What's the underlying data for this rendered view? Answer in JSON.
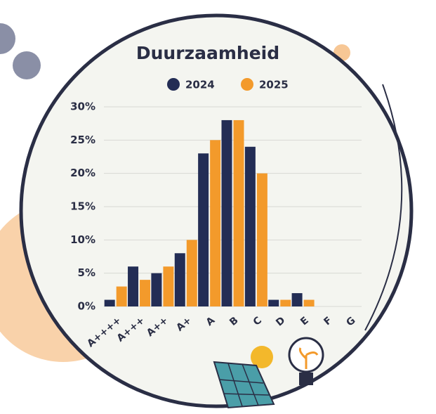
{
  "chart_data": {
    "type": "bar",
    "title": "Duurzaamheid",
    "categories": [
      "A++++",
      "A+++",
      "A++",
      "A+",
      "A",
      "B",
      "C",
      "D",
      "E",
      "F",
      "G"
    ],
    "series": [
      {
        "name": "2024",
        "color": "#232d55",
        "values": [
          1,
          6,
          5,
          8,
          23,
          28,
          24,
          1,
          2,
          0,
          0
        ]
      },
      {
        "name": "2025",
        "color": "#f39a2b",
        "values": [
          3,
          4,
          6,
          10,
          25,
          28,
          20,
          1,
          1,
          0,
          0
        ]
      }
    ],
    "ylim": [
      0,
      30
    ],
    "yticks": [
      {
        "value": 0,
        "label": "0%"
      },
      {
        "value": 5,
        "label": "5%"
      },
      {
        "value": 10,
        "label": "10%"
      },
      {
        "value": 15,
        "label": "15%"
      },
      {
        "value": 20,
        "label": "20%"
      },
      {
        "value": 25,
        "label": "25%"
      },
      {
        "value": 30,
        "label": "30%"
      }
    ],
    "grid": true
  }
}
